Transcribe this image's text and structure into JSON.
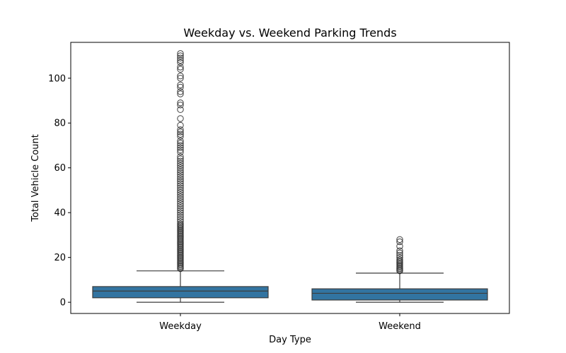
{
  "chart_data": {
    "type": "box",
    "title": "Weekday vs. Weekend Parking Trends",
    "xlabel": "Day Type",
    "ylabel": "Total Vehicle Count",
    "ylim": [
      -5,
      116
    ],
    "yticks": [
      0,
      20,
      40,
      60,
      80,
      100
    ],
    "grid": false,
    "legend": "none",
    "box_color": "#3274a1",
    "line_color": "#3d3d3d",
    "categories": [
      "Weekday",
      "Weekend"
    ],
    "boxes": [
      {
        "category": "Weekday",
        "whisker_low": 0,
        "q1": 2,
        "median": 5,
        "q3": 7,
        "whisker_high": 14,
        "outliers": [
          15,
          15.5,
          16,
          16.5,
          17,
          17.5,
          18,
          18.5,
          19,
          19.5,
          20,
          20.5,
          21,
          21.5,
          22,
          22.5,
          23,
          23.5,
          24,
          24.5,
          25,
          25.5,
          26,
          26.5,
          27,
          27.5,
          28,
          28.5,
          29,
          29.5,
          30,
          30.5,
          31,
          31.5,
          32,
          32.5,
          33,
          33.5,
          34,
          34.5,
          35,
          36,
          37,
          38,
          39,
          40,
          41,
          42,
          43,
          44,
          45,
          46,
          47,
          48,
          49,
          50,
          51,
          52,
          53,
          54,
          55,
          56,
          57,
          58,
          59,
          60,
          61,
          62,
          63,
          64,
          65,
          67,
          68,
          69,
          70,
          71,
          72,
          74,
          75,
          76,
          77,
          79,
          82,
          86,
          88,
          89,
          93,
          94,
          96,
          97,
          100,
          101,
          104,
          105,
          107,
          108,
          109,
          110,
          111
        ]
      },
      {
        "category": "Weekend",
        "whisker_low": 0,
        "q1": 1,
        "median": 4,
        "q3": 6,
        "whisker_high": 13,
        "outliers": [
          14,
          14.5,
          15,
          15.5,
          16,
          16.5,
          17,
          17.5,
          18,
          18.5,
          19,
          20,
          21,
          22,
          23,
          25,
          27,
          28
        ]
      }
    ]
  }
}
